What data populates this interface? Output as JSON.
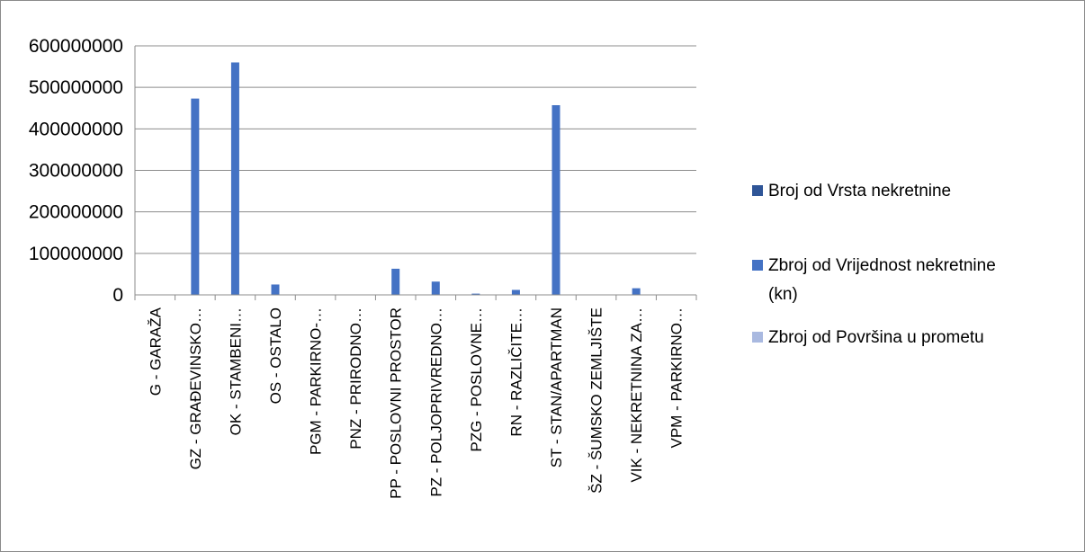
{
  "chart_data": {
    "type": "bar",
    "title": "",
    "xlabel": "",
    "ylabel": "",
    "ylim": [
      0,
      600000000
    ],
    "yticks": [
      0,
      100000000,
      200000000,
      300000000,
      400000000,
      500000000,
      600000000
    ],
    "ytick_labels": [
      "0",
      "100000000",
      "200000000",
      "300000000",
      "400000000",
      "500000000",
      "600000000"
    ],
    "grid": true,
    "legend_position": "right",
    "categories": [
      "G - GARAŽA",
      "GZ - GRAĐEVINSKO…",
      "OK - STAMBENI…",
      "OS - OSTALO",
      "PGM - PARKIRNO-…",
      "PNZ - PRIRODNO…",
      "PP - POSLOVNI PROSTOR",
      "PZ - POLJOPRIVREDNO…",
      "PZG - POSLOVNE…",
      "RN - RAZLIČITE…",
      "ST - STAN/APARTMAN",
      "ŠZ - ŠUMSKO ZEMLJIŠTE",
      "VIK - NEKRETNINA ZA…",
      "VPM - PARKIRNO…"
    ],
    "series": [
      {
        "name": "Broj od Vrsta nekretnine",
        "color": "#2f5597",
        "values": [
          20,
          600,
          900,
          60,
          5,
          3,
          150,
          80,
          10,
          30,
          1200,
          2,
          40,
          3
        ]
      },
      {
        "name": "Zbroj od Vrijednost nekretnine (kn)",
        "color": "#4472c4",
        "values": [
          500000,
          473000000,
          560000000,
          25000000,
          300000,
          200000,
          63000000,
          32000000,
          3000000,
          12000000,
          457000000,
          200000,
          16000000,
          200000
        ]
      },
      {
        "name": "Zbroj od Površina u prometu",
        "color": "#a9b9e0",
        "values": [
          1000,
          900000,
          100000,
          50000,
          500,
          800,
          40000,
          700000,
          5000,
          20000,
          60000,
          30000,
          10000,
          300
        ]
      }
    ]
  },
  "legend": {
    "items": [
      {
        "lines": [
          "Broj od Vrsta nekretnine"
        ],
        "color": "#2f5597"
      },
      {
        "lines": [
          "Zbroj od Vrijednost nekretnine",
          "(kn)"
        ],
        "color": "#4472c4"
      },
      {
        "lines": [
          "Zbroj od Površina u prometu"
        ],
        "color": "#a9b9e0"
      }
    ]
  }
}
